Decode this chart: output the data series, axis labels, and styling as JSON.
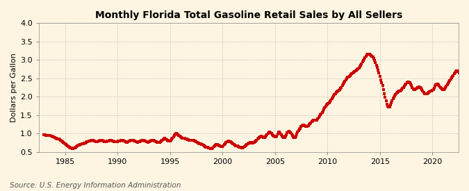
{
  "title": "Monthly Florida Total Gasoline Retail Sales by All Sellers",
  "ylabel": "Dollars per Gallon",
  "source": "Source: U.S. Energy Information Administration",
  "ylim": [
    0.5,
    4.0
  ],
  "xlim": [
    1982.5,
    2022.5
  ],
  "yticks": [
    0.5,
    1.0,
    1.5,
    2.0,
    2.5,
    3.0,
    3.5,
    4.0
  ],
  "xticks": [
    1985,
    1990,
    1995,
    2000,
    2005,
    2010,
    2015,
    2020
  ],
  "bg_color": "#fdf5e2",
  "line_color": "#cc0000",
  "grid_color": "#aaaaaa",
  "title_fontsize": 10,
  "label_fontsize": 8,
  "tick_fontsize": 8,
  "source_fontsize": 7.5,
  "start_year": 1983,
  "start_month": 1,
  "prices": [
    0.978,
    0.963,
    0.95,
    0.948,
    0.952,
    0.958,
    0.955,
    0.942,
    0.935,
    0.93,
    0.922,
    0.91,
    0.895,
    0.882,
    0.868,
    0.858,
    0.855,
    0.852,
    0.84,
    0.825,
    0.808,
    0.785,
    0.762,
    0.745,
    0.728,
    0.708,
    0.688,
    0.668,
    0.645,
    0.625,
    0.612,
    0.605,
    0.598,
    0.602,
    0.608,
    0.615,
    0.632,
    0.652,
    0.668,
    0.682,
    0.692,
    0.702,
    0.712,
    0.722,
    0.72,
    0.728,
    0.738,
    0.748,
    0.762,
    0.775,
    0.785,
    0.795,
    0.8,
    0.808,
    0.812,
    0.818,
    0.812,
    0.808,
    0.802,
    0.788,
    0.775,
    0.782,
    0.798,
    0.808,
    0.818,
    0.822,
    0.818,
    0.808,
    0.798,
    0.782,
    0.778,
    0.778,
    0.792,
    0.802,
    0.808,
    0.818,
    0.818,
    0.812,
    0.802,
    0.792,
    0.788,
    0.782,
    0.778,
    0.778,
    0.782,
    0.792,
    0.798,
    0.808,
    0.812,
    0.818,
    0.812,
    0.808,
    0.798,
    0.782,
    0.772,
    0.768,
    0.778,
    0.792,
    0.802,
    0.812,
    0.818,
    0.822,
    0.818,
    0.808,
    0.798,
    0.782,
    0.778,
    0.772,
    0.778,
    0.788,
    0.798,
    0.808,
    0.812,
    0.818,
    0.812,
    0.808,
    0.798,
    0.782,
    0.778,
    0.772,
    0.788,
    0.798,
    0.808,
    0.818,
    0.822,
    0.818,
    0.808,
    0.792,
    0.782,
    0.772,
    0.762,
    0.758,
    0.768,
    0.782,
    0.798,
    0.818,
    0.838,
    0.858,
    0.868,
    0.858,
    0.842,
    0.822,
    0.808,
    0.798,
    0.808,
    0.822,
    0.848,
    0.878,
    0.908,
    0.948,
    0.998,
    1.008,
    0.998,
    0.978,
    0.958,
    0.938,
    0.918,
    0.898,
    0.882,
    0.872,
    0.872,
    0.868,
    0.858,
    0.848,
    0.838,
    0.832,
    0.828,
    0.822,
    0.818,
    0.812,
    0.812,
    0.812,
    0.808,
    0.792,
    0.778,
    0.762,
    0.748,
    0.738,
    0.732,
    0.722,
    0.712,
    0.698,
    0.682,
    0.668,
    0.648,
    0.638,
    0.632,
    0.628,
    0.618,
    0.608,
    0.598,
    0.588,
    0.598,
    0.618,
    0.642,
    0.668,
    0.688,
    0.698,
    0.698,
    0.692,
    0.682,
    0.672,
    0.658,
    0.648,
    0.648,
    0.668,
    0.698,
    0.728,
    0.758,
    0.778,
    0.788,
    0.792,
    0.788,
    0.778,
    0.758,
    0.738,
    0.718,
    0.698,
    0.688,
    0.678,
    0.678,
    0.678,
    0.658,
    0.638,
    0.628,
    0.622,
    0.618,
    0.618,
    0.638,
    0.658,
    0.678,
    0.692,
    0.708,
    0.722,
    0.738,
    0.752,
    0.762,
    0.758,
    0.752,
    0.752,
    0.768,
    0.788,
    0.808,
    0.828,
    0.848,
    0.868,
    0.898,
    0.918,
    0.928,
    0.922,
    0.908,
    0.898,
    0.898,
    0.918,
    0.948,
    0.978,
    1.008,
    1.028,
    1.038,
    1.028,
    1.008,
    0.978,
    0.948,
    0.928,
    0.918,
    0.918,
    0.938,
    0.988,
    1.038,
    1.038,
    1.008,
    0.978,
    0.938,
    0.908,
    0.898,
    0.898,
    0.928,
    0.968,
    1.018,
    1.048,
    1.058,
    1.048,
    1.028,
    0.998,
    0.958,
    0.918,
    0.898,
    0.898,
    0.938,
    0.988,
    1.038,
    1.088,
    1.118,
    1.148,
    1.188,
    1.218,
    1.238,
    1.238,
    1.218,
    1.198,
    1.188,
    1.198,
    1.218,
    1.248,
    1.278,
    1.298,
    1.318,
    1.338,
    1.358,
    1.368,
    1.368,
    1.358,
    1.368,
    1.398,
    1.438,
    1.478,
    1.508,
    1.538,
    1.578,
    1.618,
    1.658,
    1.698,
    1.738,
    1.778,
    1.798,
    1.818,
    1.838,
    1.868,
    1.908,
    1.948,
    1.988,
    2.028,
    2.058,
    2.088,
    2.118,
    2.138,
    2.158,
    2.178,
    2.198,
    2.228,
    2.258,
    2.298,
    2.338,
    2.378,
    2.418,
    2.458,
    2.498,
    2.528,
    2.538,
    2.558,
    2.578,
    2.598,
    2.618,
    2.638,
    2.658,
    2.678,
    2.698,
    2.718,
    2.738,
    2.758,
    2.778,
    2.818,
    2.858,
    2.898,
    2.938,
    2.978,
    3.018,
    3.058,
    3.098,
    3.128,
    3.148,
    3.158,
    3.158,
    3.138,
    3.118,
    3.098,
    3.078,
    3.038,
    2.978,
    2.918,
    2.858,
    2.798,
    2.718,
    2.638,
    2.548,
    2.458,
    2.378,
    2.298,
    2.198,
    2.088,
    1.978,
    1.888,
    1.798,
    1.738,
    1.718,
    1.718,
    1.778,
    1.838,
    1.898,
    1.948,
    1.988,
    2.028,
    2.068,
    2.098,
    2.118,
    2.138,
    2.148,
    2.158,
    2.178,
    2.198,
    2.228,
    2.258,
    2.288,
    2.318,
    2.348,
    2.378,
    2.398,
    2.398,
    2.378,
    2.338,
    2.298,
    2.258,
    2.218,
    2.198,
    2.198,
    2.208,
    2.228,
    2.248,
    2.258,
    2.268,
    2.258,
    2.238,
    2.198,
    2.158,
    2.118,
    2.088,
    2.078,
    2.078,
    2.078,
    2.098,
    2.118,
    2.138,
    2.148,
    2.158,
    2.168,
    2.198,
    2.238,
    2.278,
    2.318,
    2.338,
    2.338,
    2.318,
    2.288,
    2.258,
    2.228,
    2.208,
    2.198,
    2.198,
    2.218,
    2.248,
    2.278,
    2.318,
    2.358,
    2.398,
    2.438,
    2.468,
    2.508,
    2.548,
    2.578,
    2.618,
    2.648,
    2.678,
    2.698,
    2.698,
    2.678,
    2.638
  ]
}
